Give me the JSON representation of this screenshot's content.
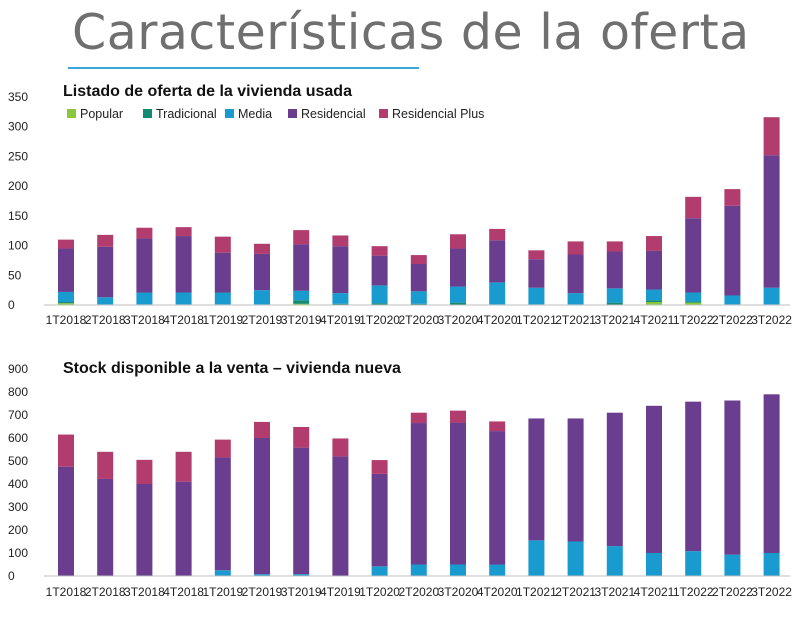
{
  "page": {
    "title": "Características de la oferta"
  },
  "chart_data": [
    {
      "type": "bar",
      "stacked": true,
      "title": "Listado de oferta de la vivienda usada",
      "categories": [
        "1T2018",
        "2T2018",
        "3T2018",
        "4T2018",
        "1T2019",
        "2T2019",
        "3T2019",
        "4T2019",
        "1T2020",
        "2T2020",
        "3T2020",
        "4T2020",
        "1T2021",
        "2T2021",
        "3T2021",
        "4T2021",
        "1T2022",
        "2T2022",
        "3T2022"
      ],
      "ylim": [
        0,
        350
      ],
      "yticks": [
        0,
        50,
        100,
        150,
        200,
        250,
        300,
        350
      ],
      "legend_position": "top-left",
      "series": [
        {
          "name": "Popular",
          "color": "#8cc63f",
          "values": [
            3,
            0,
            0,
            0,
            0,
            0,
            2,
            0,
            0,
            0,
            0,
            0,
            0,
            0,
            0,
            5,
            4,
            0,
            0
          ]
        },
        {
          "name": "Tradicional",
          "color": "#138a72",
          "values": [
            2,
            1,
            1,
            1,
            1,
            1,
            6,
            2,
            3,
            2,
            4,
            1,
            1,
            1,
            4,
            3,
            2,
            1,
            1
          ]
        },
        {
          "name": "Media",
          "color": "#1a9bd0",
          "values": [
            17,
            12,
            20,
            20,
            20,
            24,
            16,
            18,
            30,
            21,
            27,
            37,
            28,
            19,
            24,
            18,
            15,
            15,
            28
          ]
        },
        {
          "name": "Residencial",
          "color": "#6a3d8f",
          "values": [
            73,
            85,
            91,
            95,
            67,
            61,
            78,
            79,
            50,
            46,
            64,
            71,
            48,
            65,
            62,
            65,
            125,
            151,
            223
          ]
        },
        {
          "name": "Residencial Plus",
          "color": "#b13c6d",
          "values": [
            15,
            20,
            18,
            15,
            27,
            17,
            24,
            18,
            16,
            15,
            24,
            19,
            15,
            22,
            17,
            25,
            36,
            28,
            64
          ]
        }
      ]
    },
    {
      "type": "bar",
      "stacked": true,
      "title": "Stock disponible a la venta – vivienda nueva",
      "categories": [
        "1T2018",
        "2T2018",
        "3T2018",
        "4T2018",
        "1T2019",
        "2T2019",
        "3T2019",
        "4T2019",
        "1T2020",
        "2T2020",
        "3T2020",
        "4T2020",
        "1T2021",
        "2T2021",
        "3T2021",
        "4T2021",
        "1T2022",
        "2T2022",
        "3T2022"
      ],
      "ylim": [
        0,
        900
      ],
      "yticks": [
        0,
        100,
        200,
        300,
        400,
        500,
        600,
        700,
        800,
        900
      ],
      "series": [
        {
          "name": "Media",
          "color": "#1a9bd0",
          "values": [
            0,
            0,
            0,
            0,
            25,
            8,
            8,
            0,
            42,
            50,
            50,
            50,
            155,
            150,
            130,
            100,
            108,
            93,
            100
          ]
        },
        {
          "name": "Residencial",
          "color": "#6a3d8f",
          "values": [
            475,
            422,
            400,
            410,
            490,
            592,
            550,
            520,
            402,
            615,
            617,
            580,
            530,
            535,
            580,
            640,
            650,
            670,
            690
          ]
        },
        {
          "name": "Residencial Plus",
          "color": "#b13c6d",
          "values": [
            140,
            118,
            105,
            130,
            78,
            70,
            90,
            78,
            60,
            45,
            52,
            42,
            0,
            0,
            0,
            0,
            0,
            0,
            0
          ]
        }
      ]
    }
  ]
}
